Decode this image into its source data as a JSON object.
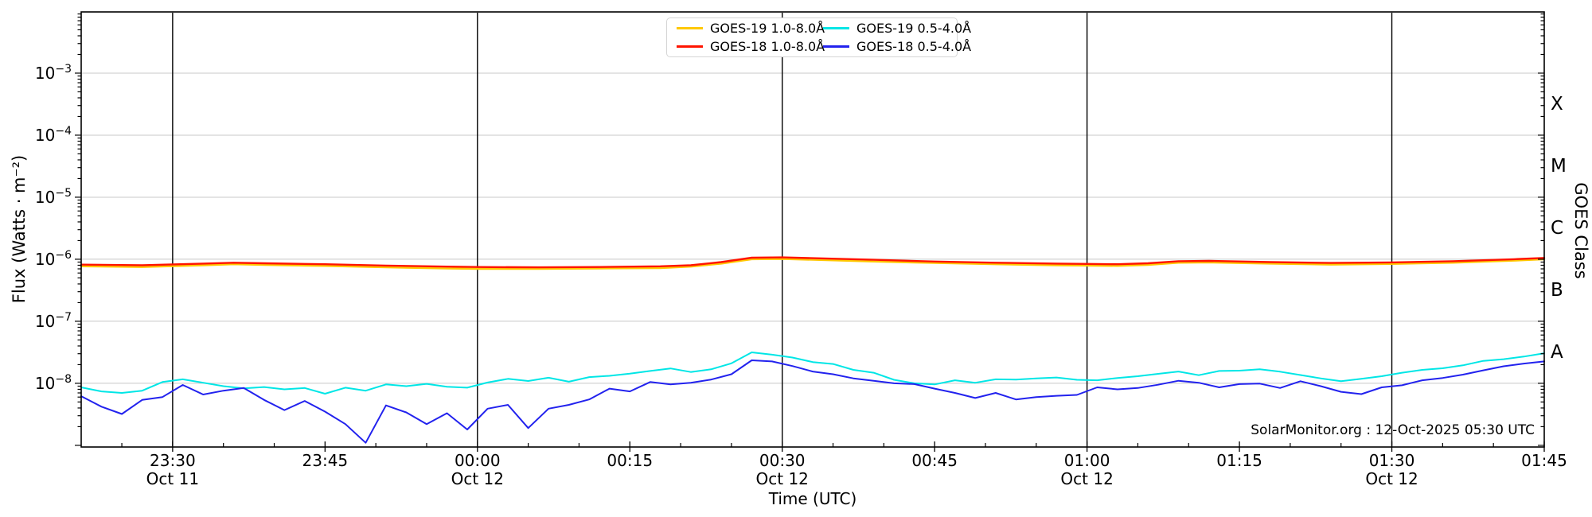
{
  "annotation": {
    "credit": "SolarMonitor.org : 12-Oct-2025 05:30 UTC"
  },
  "chart_data": {
    "type": "line",
    "title": "",
    "xlabel": "Time (UTC)",
    "ylabel": "Flux (Watts · m⁻²)",
    "ylabel_right": "GOES Class",
    "x_unit": "minutes relative to 00:00 UTC 12-Oct-2025",
    "x_range": [
      -39,
      105
    ],
    "y_range": [
      9.4e-10,
      0.0097
    ],
    "grid": "horizontal-decades",
    "legend_position": "top-center",
    "y_grid_exponents": [
      -8,
      -7,
      -6,
      -5,
      -4,
      -3
    ],
    "y_ticks": [
      {
        "exponent": -3,
        "base": "10",
        "sup": "−3"
      },
      {
        "exponent": -4,
        "base": "10",
        "sup": "−4"
      },
      {
        "exponent": -5,
        "base": "10",
        "sup": "−5"
      },
      {
        "exponent": -6,
        "base": "10",
        "sup": "−6"
      },
      {
        "exponent": -7,
        "base": "10",
        "sup": "−7"
      },
      {
        "exponent": -8,
        "base": "10",
        "sup": "−8"
      }
    ],
    "x_major_ticks": [
      {
        "t": -30,
        "label": "23:30",
        "date": "Oct 11"
      },
      {
        "t": -15,
        "label": "23:45"
      },
      {
        "t": 0,
        "label": "00:00",
        "date": "Oct 12"
      },
      {
        "t": 15,
        "label": "00:15"
      },
      {
        "t": 30,
        "label": "00:30",
        "date": "Oct 12"
      },
      {
        "t": 45,
        "label": "00:45"
      },
      {
        "t": 60,
        "label": "01:00",
        "date": "Oct 12"
      },
      {
        "t": 75,
        "label": "01:15"
      },
      {
        "t": 90,
        "label": "01:30",
        "date": "Oct 12"
      },
      {
        "t": 105,
        "label": "01:45"
      }
    ],
    "x_minor_tick_step_minutes": 5,
    "event_lines_t": [
      -30,
      0,
      30,
      60,
      90
    ],
    "goes_classes": [
      {
        "label": "X",
        "log_center": -3.5
      },
      {
        "label": "M",
        "log_center": -4.5
      },
      {
        "label": "C",
        "log_center": -5.5
      },
      {
        "label": "B",
        "log_center": -6.5
      },
      {
        "label": "A",
        "log_center": -7.5
      }
    ],
    "series": [
      {
        "name": "GOES-19 1.0-8.0Å",
        "color": "#ffc800",
        "width": 2.4,
        "x": [
          -39,
          -33,
          -27,
          -24,
          -21,
          -15,
          -9,
          -3,
          0,
          6,
          12,
          18,
          21,
          24,
          27,
          30,
          33,
          39,
          45,
          51,
          57,
          60,
          63,
          66,
          69,
          72,
          78,
          84,
          90,
          96,
          102,
          105
        ],
        "y": [
          7.7e-07,
          7.5e-07,
          8e-07,
          8.3e-07,
          8.1e-07,
          7.8e-07,
          7.4e-07,
          7.1e-07,
          7e-07,
          7e-07,
          7.1e-07,
          7.2e-07,
          7.6e-07,
          8.5e-07,
          1e-06,
          1.01e-06,
          9.8e-07,
          9.2e-07,
          8.7e-07,
          8.3e-07,
          8e-07,
          7.9e-07,
          7.8e-07,
          8.1e-07,
          8.8e-07,
          8.9e-07,
          8.5e-07,
          8.2e-07,
          8.4e-07,
          8.8e-07,
          9.5e-07,
          1e-06
        ]
      },
      {
        "name": "GOES-18 1.0-8.0Å",
        "color": "#ff1400",
        "width": 2.4,
        "x": [
          -39,
          -33,
          -27,
          -24,
          -21,
          -15,
          -9,
          -3,
          0,
          6,
          12,
          18,
          21,
          24,
          27,
          30,
          33,
          39,
          45,
          51,
          57,
          60,
          63,
          66,
          69,
          72,
          78,
          84,
          90,
          96,
          102,
          105
        ],
        "y": [
          8.2e-07,
          8e-07,
          8.5e-07,
          8.8e-07,
          8.6e-07,
          8.3e-07,
          7.9e-07,
          7.6e-07,
          7.5e-07,
          7.4e-07,
          7.5e-07,
          7.7e-07,
          8e-07,
          9e-07,
          1.06e-06,
          1.07e-06,
          1.04e-06,
          9.8e-07,
          9.2e-07,
          8.8e-07,
          8.5e-07,
          8.4e-07,
          8.3e-07,
          8.6e-07,
          9.3e-07,
          9.4e-07,
          9e-07,
          8.7e-07,
          8.9e-07,
          9.3e-07,
          1e-06,
          1.05e-06
        ]
      },
      {
        "name": "GOES-19 0.5-4.0Å",
        "color": "#00e6e6",
        "width": 2.0,
        "x": [
          -39,
          -37,
          -35,
          -33,
          -31,
          -29,
          -27,
          -25,
          -23,
          -21,
          -19,
          -17,
          -15,
          -13,
          -11,
          -9,
          -7,
          -5,
          -3,
          -1,
          1,
          3,
          5,
          7,
          9,
          11,
          13,
          15,
          17,
          19,
          21,
          23,
          25,
          27,
          29,
          31,
          33,
          35,
          37,
          39,
          41,
          43,
          45,
          47,
          49,
          51,
          53,
          55,
          57,
          59,
          61,
          63,
          65,
          67,
          69,
          71,
          73,
          75,
          77,
          79,
          81,
          83,
          85,
          87,
          89,
          91,
          93,
          95,
          97,
          99,
          101,
          103,
          105
        ],
        "y": [
          8.6e-09,
          7.4e-09,
          7e-09,
          7.6e-09,
          1.05e-08,
          1.16e-08,
          1.02e-08,
          9e-09,
          8.3e-09,
          8.7e-09,
          8e-09,
          8.4e-09,
          6.8e-09,
          8.5e-09,
          7.6e-09,
          9.6e-09,
          9e-09,
          9.8e-09,
          8.8e-09,
          8.5e-09,
          1.03e-08,
          1.18e-08,
          1.09e-08,
          1.23e-08,
          1.06e-08,
          1.26e-08,
          1.32e-08,
          1.43e-08,
          1.58e-08,
          1.74e-08,
          1.52e-08,
          1.68e-08,
          2.1e-08,
          3.15e-08,
          2.9e-08,
          2.6e-08,
          2.2e-08,
          2.05e-08,
          1.65e-08,
          1.48e-08,
          1.14e-08,
          1e-08,
          9.6e-09,
          1.12e-08,
          1.02e-08,
          1.16e-08,
          1.15e-08,
          1.2e-08,
          1.24e-08,
          1.14e-08,
          1.12e-08,
          1.22e-08,
          1.3e-08,
          1.42e-08,
          1.55e-08,
          1.35e-08,
          1.58e-08,
          1.6e-08,
          1.68e-08,
          1.54e-08,
          1.36e-08,
          1.2e-08,
          1.08e-08,
          1.18e-08,
          1.3e-08,
          1.48e-08,
          1.65e-08,
          1.75e-08,
          1.95e-08,
          2.3e-08,
          2.45e-08,
          2.7e-08,
          3.05e-08
        ]
      },
      {
        "name": "GOES-18 0.5-4.0Å",
        "color": "#2222ee",
        "width": 2.0,
        "x": [
          -39,
          -37,
          -35,
          -33,
          -31,
          -29,
          -27,
          -25,
          -23,
          -21,
          -19,
          -17,
          -15,
          -13,
          -11,
          -9,
          -7,
          -5,
          -3,
          -1,
          1,
          3,
          5,
          7,
          9,
          11,
          13,
          15,
          17,
          19,
          21,
          23,
          25,
          27,
          29,
          31,
          33,
          35,
          37,
          39,
          41,
          43,
          45,
          47,
          49,
          51,
          53,
          55,
          57,
          59,
          61,
          63,
          65,
          67,
          69,
          71,
          73,
          75,
          77,
          79,
          81,
          83,
          85,
          87,
          89,
          91,
          93,
          95,
          97,
          99,
          101,
          103,
          105
        ],
        "y": [
          6.2e-09,
          4.2e-09,
          3.2e-09,
          5.4e-09,
          6e-09,
          9.4e-09,
          6.6e-09,
          7.6e-09,
          8.4e-09,
          5.4e-09,
          3.7e-09,
          5.2e-09,
          3.5e-09,
          2.2e-09,
          1.1e-09,
          4.4e-09,
          3.4e-09,
          2.2e-09,
          3.3e-09,
          1.8e-09,
          3.9e-09,
          4.5e-09,
          1.9e-09,
          3.9e-09,
          4.5e-09,
          5.5e-09,
          8.2e-09,
          7.4e-09,
          1.05e-08,
          9.6e-09,
          1.02e-08,
          1.15e-08,
          1.4e-08,
          2.35e-08,
          2.25e-08,
          1.9e-08,
          1.55e-08,
          1.4e-08,
          1.2e-08,
          1.1e-08,
          1e-08,
          9.7e-09,
          8.2e-09,
          7e-09,
          5.8e-09,
          7e-09,
          5.5e-09,
          6e-09,
          6.3e-09,
          6.5e-09,
          8.6e-09,
          8e-09,
          8.4e-09,
          9.5e-09,
          1.1e-08,
          1.02e-08,
          8.6e-09,
          9.7e-09,
          9.9e-09,
          8.4e-09,
          1.08e-08,
          9e-09,
          7.3e-09,
          6.7e-09,
          8.6e-09,
          9.3e-09,
          1.12e-08,
          1.22e-08,
          1.38e-08,
          1.62e-08,
          1.88e-08,
          2.08e-08,
          2.25e-08
        ]
      }
    ]
  }
}
